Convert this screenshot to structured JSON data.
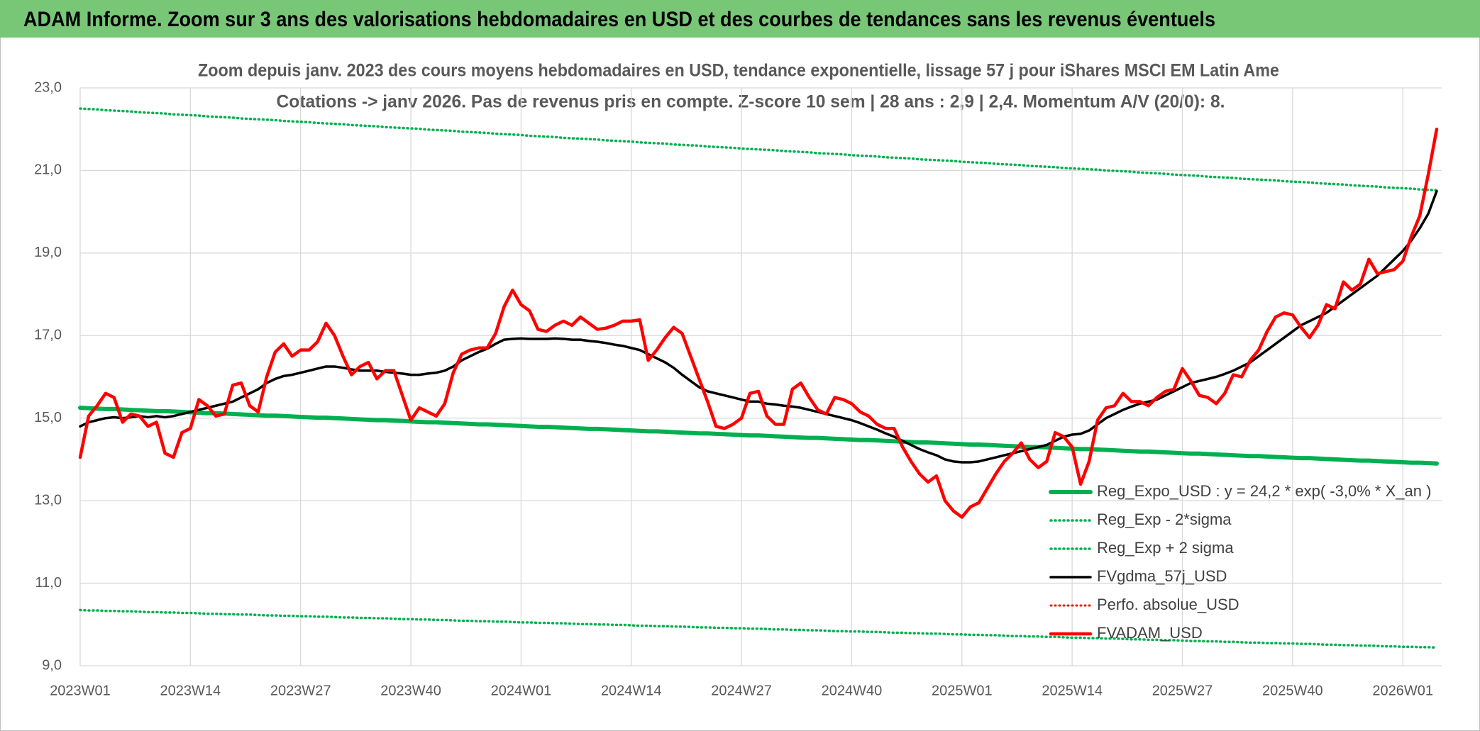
{
  "chart_data": {
    "type": "line",
    "title": "ADAM Informe. Zoom sur 3 ans des valorisations hebdomadaires en USD et des courbes de tendances sans les revenus éventuels",
    "subtitle": [
      "Zoom depuis janv. 2023 des cours moyens hebdomadaires en USD, tendance exponentielle, lissage 57 j pour iShares MSCI EM Latin Ame",
      "Cotations -> janv 2026. Pas de revenus pris en compte. Z-score 10 sem | 28 ans : 2,9 | 2,4. Momentum A/V (20/0): 8."
    ],
    "categories": [
      "2023W01",
      null,
      null,
      null,
      null,
      null,
      null,
      null,
      null,
      null,
      null,
      null,
      null,
      "2023W14",
      null,
      null,
      null,
      null,
      null,
      null,
      null,
      null,
      null,
      null,
      null,
      null,
      "2023W27",
      null,
      null,
      null,
      null,
      null,
      null,
      null,
      null,
      null,
      null,
      null,
      null,
      "2023W40",
      null,
      null,
      null,
      null,
      null,
      null,
      null,
      null,
      null,
      null,
      null,
      null,
      "2024W01",
      null,
      null,
      null,
      null,
      null,
      null,
      null,
      null,
      null,
      null,
      null,
      null,
      "2024W14",
      null,
      null,
      null,
      null,
      null,
      null,
      null,
      null,
      null,
      null,
      null,
      null,
      "2024W27",
      null,
      null,
      null,
      null,
      null,
      null,
      null,
      null,
      null,
      null,
      null,
      null,
      "2024W40",
      null,
      null,
      null,
      null,
      null,
      null,
      null,
      null,
      null,
      null,
      null,
      null,
      "2025W01",
      null,
      null,
      null,
      null,
      null,
      null,
      null,
      null,
      null,
      null,
      null,
      null,
      "2025W14",
      null,
      null,
      null,
      null,
      null,
      null,
      null,
      null,
      null,
      null,
      null,
      null,
      "2025W27",
      null,
      null,
      null,
      null,
      null,
      null,
      null,
      null,
      null,
      null,
      null,
      null,
      "2025W40",
      null,
      null,
      null,
      null,
      null,
      null,
      null,
      null,
      null,
      null,
      null,
      null,
      "2026W01",
      null,
      null,
      null,
      null
    ],
    "ylim": [
      9,
      23
    ],
    "yticks": [
      {
        "value": 9,
        "label": "9,0"
      },
      {
        "value": 11,
        "label": "11,0"
      },
      {
        "value": 13,
        "label": "13,0"
      },
      {
        "value": 15,
        "label": "15,0"
      },
      {
        "value": 17,
        "label": "17,0"
      },
      {
        "value": 19,
        "label": "19,0"
      },
      {
        "value": 21,
        "label": "21,0"
      },
      {
        "value": 23,
        "label": "23,0"
      }
    ],
    "grid": true,
    "legend": "lower right",
    "series": [
      {
        "name": "Reg_Expo_USD : y = 24,2 * exp( -3,0% *  X_an )",
        "color": "#00b050",
        "dash": "solid",
        "values": [
          15.25,
          15.24,
          15.23,
          15.22,
          15.22,
          15.21,
          15.2,
          15.19,
          15.18,
          15.17,
          15.17,
          15.16,
          15.15,
          15.14,
          15.13,
          15.12,
          15.12,
          15.11,
          15.1,
          15.09,
          15.08,
          15.07,
          15.06,
          15.06,
          15.05,
          15.04,
          15.03,
          15.02,
          15.01,
          15.01,
          15.0,
          14.99,
          14.98,
          14.97,
          14.96,
          14.95,
          14.95,
          14.94,
          14.93,
          14.92,
          14.91,
          14.9,
          14.9,
          14.89,
          14.88,
          14.87,
          14.86,
          14.85,
          14.85,
          14.84,
          14.83,
          14.82,
          14.81,
          14.8,
          14.79,
          14.79,
          14.78,
          14.77,
          14.76,
          14.75,
          14.74,
          14.74,
          14.73,
          14.72,
          14.71,
          14.7,
          14.69,
          14.68,
          14.68,
          14.67,
          14.66,
          14.65,
          14.64,
          14.63,
          14.63,
          14.62,
          14.61,
          14.6,
          14.59,
          14.58,
          14.58,
          14.57,
          14.56,
          14.55,
          14.54,
          14.53,
          14.52,
          14.52,
          14.51,
          14.5,
          14.49,
          14.48,
          14.47,
          14.47,
          14.46,
          14.45,
          14.44,
          14.43,
          14.42,
          14.41,
          14.41,
          14.4,
          14.39,
          14.38,
          14.37,
          14.36,
          14.36,
          14.35,
          14.34,
          14.33,
          14.32,
          14.31,
          14.3,
          14.3,
          14.29,
          14.28,
          14.27,
          14.26,
          14.25,
          14.25,
          14.24,
          14.23,
          14.22,
          14.21,
          14.2,
          14.19,
          14.19,
          14.18,
          14.17,
          14.16,
          14.15,
          14.14,
          14.14,
          14.13,
          14.12,
          14.11,
          14.1,
          14.09,
          14.08,
          14.08,
          14.07,
          14.06,
          14.05,
          14.04,
          14.03,
          14.03,
          14.02,
          14.01,
          14.0,
          13.99,
          13.98,
          13.97,
          13.97,
          13.96,
          13.95,
          13.94,
          13.93,
          13.92,
          13.92,
          13.91,
          13.9
        ]
      },
      {
        "name": "Reg_Exp - 2*sigma",
        "color": "#00b050",
        "dash": "dotted",
        "values": [
          10.35,
          10.34,
          10.34,
          10.33,
          10.33,
          10.32,
          10.32,
          10.31,
          10.3,
          10.3,
          10.29,
          10.29,
          10.28,
          10.28,
          10.27,
          10.26,
          10.26,
          10.25,
          10.25,
          10.24,
          10.24,
          10.23,
          10.22,
          10.22,
          10.21,
          10.21,
          10.2,
          10.2,
          10.19,
          10.19,
          10.18,
          10.17,
          10.17,
          10.16,
          10.16,
          10.15,
          10.15,
          10.14,
          10.13,
          10.13,
          10.12,
          10.12,
          10.11,
          10.11,
          10.1,
          10.09,
          10.09,
          10.08,
          10.08,
          10.07,
          10.07,
          10.06,
          10.05,
          10.05,
          10.04,
          10.04,
          10.03,
          10.03,
          10.02,
          10.01,
          10.01,
          10.0,
          10.0,
          9.99,
          9.99,
          9.98,
          9.97,
          9.97,
          9.96,
          9.96,
          9.95,
          9.95,
          9.94,
          9.93,
          9.93,
          9.92,
          9.92,
          9.91,
          9.91,
          9.9,
          9.9,
          9.89,
          9.88,
          9.88,
          9.87,
          9.87,
          9.86,
          9.86,
          9.85,
          9.84,
          9.84,
          9.83,
          9.83,
          9.82,
          9.82,
          9.81,
          9.8,
          9.8,
          9.79,
          9.79,
          9.78,
          9.78,
          9.77,
          9.76,
          9.76,
          9.75,
          9.75,
          9.74,
          9.74,
          9.73,
          9.72,
          9.72,
          9.71,
          9.71,
          9.7,
          9.7,
          9.69,
          9.68,
          9.68,
          9.67,
          9.67,
          9.66,
          9.66,
          9.65,
          9.64,
          9.64,
          9.63,
          9.63,
          9.62,
          9.62,
          9.61,
          9.6,
          9.6,
          9.59,
          9.59,
          9.58,
          9.58,
          9.57,
          9.56,
          9.56,
          9.55,
          9.55,
          9.54,
          9.54,
          9.53,
          9.53,
          9.52,
          9.51,
          9.51,
          9.5,
          9.5,
          9.49,
          9.49,
          9.48,
          9.47,
          9.47,
          9.46,
          9.46,
          9.45,
          9.45,
          9.44
        ]
      },
      {
        "name": "Reg_Exp + 2 sigma",
        "color": "#00b050",
        "dash": "dotted",
        "values": [
          22.5,
          22.49,
          22.48,
          22.46,
          22.45,
          22.44,
          22.43,
          22.41,
          22.4,
          22.39,
          22.38,
          22.36,
          22.35,
          22.34,
          22.33,
          22.31,
          22.3,
          22.29,
          22.28,
          22.26,
          22.25,
          22.24,
          22.23,
          22.22,
          22.2,
          22.19,
          22.18,
          22.17,
          22.15,
          22.14,
          22.13,
          22.12,
          22.1,
          22.09,
          22.08,
          22.07,
          22.05,
          22.04,
          22.03,
          22.02,
          22.01,
          21.99,
          21.98,
          21.97,
          21.96,
          21.94,
          21.93,
          21.92,
          21.91,
          21.89,
          21.88,
          21.87,
          21.86,
          21.84,
          21.83,
          21.82,
          21.81,
          21.79,
          21.78,
          21.77,
          21.76,
          21.75,
          21.73,
          21.72,
          21.71,
          21.7,
          21.68,
          21.67,
          21.66,
          21.65,
          21.63,
          21.62,
          21.61,
          21.6,
          21.58,
          21.57,
          21.56,
          21.55,
          21.53,
          21.52,
          21.51,
          21.5,
          21.49,
          21.47,
          21.46,
          21.45,
          21.44,
          21.42,
          21.41,
          21.4,
          21.39,
          21.37,
          21.36,
          21.35,
          21.34,
          21.32,
          21.31,
          21.3,
          21.29,
          21.27,
          21.26,
          21.25,
          21.24,
          21.23,
          21.21,
          21.2,
          21.19,
          21.18,
          21.16,
          21.15,
          21.14,
          21.13,
          21.11,
          21.1,
          21.09,
          21.08,
          21.06,
          21.05,
          21.04,
          21.03,
          21.02,
          21.0,
          20.99,
          20.98,
          20.97,
          20.95,
          20.94,
          20.93,
          20.92,
          20.9,
          20.89,
          20.88,
          20.87,
          20.85,
          20.84,
          20.83,
          20.82,
          20.8,
          20.79,
          20.78,
          20.77,
          20.76,
          20.74,
          20.73,
          20.72,
          20.71,
          20.69,
          20.68,
          20.67,
          20.66,
          20.64,
          20.63,
          20.62,
          20.61,
          20.59,
          20.58,
          20.57,
          20.56,
          20.54,
          20.53,
          20.52
        ]
      },
      {
        "name": "FVgdma_57j_USD",
        "color": "#000000",
        "dash": "solid",
        "values": [
          14.8,
          14.9,
          14.95,
          15.0,
          15.02,
          15.0,
          15.02,
          15.05,
          15.02,
          15.05,
          15.02,
          15.05,
          15.1,
          15.15,
          15.2,
          15.25,
          15.3,
          15.35,
          15.4,
          15.5,
          15.6,
          15.7,
          15.85,
          15.95,
          16.02,
          16.05,
          16.1,
          16.15,
          16.2,
          16.25,
          16.25,
          16.22,
          16.18,
          16.15,
          16.15,
          16.15,
          16.12,
          16.1,
          16.08,
          16.05,
          16.05,
          16.08,
          16.1,
          16.15,
          16.25,
          16.4,
          16.5,
          16.6,
          16.68,
          16.8,
          16.9,
          16.92,
          16.93,
          16.92,
          16.92,
          16.92,
          16.93,
          16.92,
          16.9,
          16.9,
          16.87,
          16.85,
          16.82,
          16.78,
          16.75,
          16.7,
          16.65,
          16.55,
          16.45,
          16.35,
          16.22,
          16.05,
          15.9,
          15.75,
          15.65,
          15.6,
          15.55,
          15.5,
          15.45,
          15.4,
          15.4,
          15.35,
          15.33,
          15.3,
          15.28,
          15.25,
          15.2,
          15.15,
          15.1,
          15.05,
          15.0,
          14.95,
          14.88,
          14.8,
          14.72,
          14.63,
          14.55,
          14.45,
          14.35,
          14.25,
          14.17,
          14.1,
          14.0,
          13.95,
          13.93,
          13.93,
          13.95,
          14.0,
          14.05,
          14.1,
          14.15,
          14.2,
          14.25,
          14.3,
          14.35,
          14.45,
          14.55,
          14.6,
          14.62,
          14.7,
          14.85,
          15.0,
          15.1,
          15.2,
          15.28,
          15.35,
          15.4,
          15.45,
          15.55,
          15.65,
          15.75,
          15.85,
          15.9,
          15.95,
          16.0,
          16.07,
          16.15,
          16.25,
          16.35,
          16.5,
          16.65,
          16.8,
          16.95,
          17.1,
          17.25,
          17.35,
          17.45,
          17.55,
          17.7,
          17.85,
          18.0,
          18.15,
          18.3,
          18.45,
          18.65,
          18.85,
          19.05,
          19.3,
          19.6,
          19.95,
          20.5
        ]
      },
      {
        "name": "Perfo. absolue_USD",
        "color": "#ff0000",
        "dash": "dotted",
        "values": [
          null,
          null,
          null,
          null,
          null,
          null,
          null,
          null,
          null,
          null,
          null,
          null,
          null,
          null,
          null,
          null,
          null,
          null,
          null,
          null,
          null,
          null,
          null,
          null,
          null,
          null,
          null,
          null,
          null,
          null,
          null,
          null,
          null,
          null,
          null,
          null,
          null,
          null,
          null,
          null,
          null,
          null,
          null,
          null,
          null,
          null,
          null,
          null,
          null,
          null,
          null,
          null,
          null,
          null,
          null,
          null,
          null,
          null,
          null,
          null,
          null,
          null,
          null,
          null,
          null,
          null,
          null,
          null,
          null,
          null,
          null,
          null,
          null,
          null,
          null,
          null,
          null,
          null,
          null,
          null,
          null,
          null,
          null,
          null,
          null,
          null,
          null,
          null,
          null,
          null,
          null,
          null,
          null,
          null,
          null,
          null,
          null,
          null,
          null,
          null,
          null,
          null,
          null,
          null,
          null,
          null,
          null,
          null,
          null,
          null,
          null,
          null,
          null,
          null,
          null,
          null,
          null,
          null,
          null,
          null,
          null,
          null,
          null,
          null,
          null,
          null,
          null,
          null,
          null,
          null,
          null,
          null,
          null,
          null,
          null,
          null,
          null,
          null,
          null,
          null,
          null,
          null,
          null,
          null,
          null,
          null,
          null,
          null,
          null,
          null,
          null,
          null,
          null,
          null,
          null,
          null,
          null,
          null,
          null,
          null,
          null
        ]
      },
      {
        "name": "FVADAM_USD",
        "color": "#ff0000",
        "dash": "solid",
        "values": [
          14.05,
          15.05,
          15.3,
          15.6,
          15.5,
          14.9,
          15.1,
          15.05,
          14.8,
          14.9,
          14.15,
          14.05,
          14.65,
          14.75,
          15.45,
          15.3,
          15.05,
          15.1,
          15.8,
          15.85,
          15.3,
          15.15,
          16.0,
          16.6,
          16.8,
          16.5,
          16.65,
          16.65,
          16.85,
          17.3,
          17.0,
          16.5,
          16.05,
          16.25,
          16.35,
          15.95,
          16.15,
          16.15,
          15.55,
          14.95,
          15.25,
          15.15,
          15.05,
          15.35,
          16.1,
          16.55,
          16.65,
          16.7,
          16.7,
          17.05,
          17.7,
          18.1,
          17.75,
          17.6,
          17.15,
          17.1,
          17.25,
          17.35,
          17.25,
          17.45,
          17.3,
          17.15,
          17.18,
          17.25,
          17.35,
          17.35,
          17.38,
          16.4,
          16.65,
          16.95,
          17.2,
          17.05,
          16.5,
          15.95,
          15.4,
          14.8,
          14.75,
          14.85,
          15.0,
          15.6,
          15.65,
          15.05,
          14.85,
          14.85,
          15.7,
          15.85,
          15.5,
          15.2,
          15.1,
          15.5,
          15.45,
          15.35,
          15.15,
          15.05,
          14.85,
          14.75,
          14.75,
          14.3,
          13.95,
          13.65,
          13.45,
          13.6,
          13.0,
          12.75,
          12.6,
          12.85,
          12.95,
          13.3,
          13.65,
          13.95,
          14.15,
          14.4,
          14.0,
          13.8,
          13.95,
          14.65,
          14.55,
          14.3,
          13.4,
          13.95,
          14.95,
          15.25,
          15.3,
          15.6,
          15.4,
          15.4,
          15.3,
          15.5,
          15.65,
          15.7,
          16.2,
          15.9,
          15.55,
          15.5,
          15.35,
          15.6,
          16.05,
          16.0,
          16.4,
          16.65,
          17.1,
          17.45,
          17.55,
          17.5,
          17.2,
          16.95,
          17.25,
          17.75,
          17.65,
          18.3,
          18.1,
          18.25,
          18.85,
          18.5,
          18.55,
          18.6,
          18.8,
          19.4,
          19.9,
          20.9,
          22.0
        ]
      }
    ]
  }
}
